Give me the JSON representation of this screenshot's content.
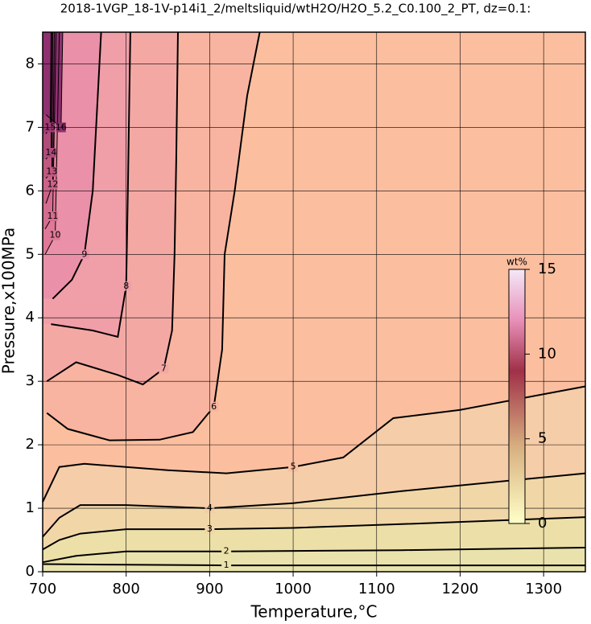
{
  "chart_data": {
    "type": "contour",
    "title": "2018-1VGP_18-1V-p14i1_2/meltsliquid/wtH2O/H2O_5.2_C0.100_2_PT, dz=0.1:",
    "xlabel": "Temperature,°C",
    "ylabel": "Pressure,x100MPa",
    "xlim": [
      700,
      1350
    ],
    "ylim": [
      0,
      8.5
    ],
    "xticks": [
      700,
      800,
      900,
      1000,
      1100,
      1200,
      1300
    ],
    "yticks": [
      0,
      1,
      2,
      3,
      4,
      5,
      6,
      7,
      8
    ],
    "grid": true,
    "colorbar": {
      "label": "wt%",
      "lim": [
        0,
        15
      ],
      "ticks": [
        0,
        5,
        10,
        15
      ]
    },
    "contours": [
      {
        "level": 1,
        "x": [
          700,
          800,
          920,
          1130,
          1350
        ],
        "y": [
          0.12,
          0.11,
          0.1,
          0.1,
          0.1
        ]
      },
      {
        "level": 2,
        "x": [
          700,
          740,
          800,
          920,
          1130,
          1350
        ],
        "y": [
          0.15,
          0.25,
          0.32,
          0.32,
          0.34,
          0.38
        ]
      },
      {
        "level": 3,
        "x": [
          700,
          720,
          745,
          800,
          900,
          1000,
          1130,
          1350
        ],
        "y": [
          0.35,
          0.5,
          0.6,
          0.67,
          0.67,
          0.69,
          0.75,
          0.86
        ]
      },
      {
        "level": 4,
        "x": [
          700,
          720,
          745,
          800,
          900,
          1000,
          1130,
          1350
        ],
        "y": [
          0.55,
          0.85,
          1.05,
          1.05,
          1.0,
          1.08,
          1.27,
          1.55
        ]
      },
      {
        "level": 5,
        "x": [
          700,
          720,
          750,
          850,
          920,
          1000,
          1060,
          1120,
          1200,
          1350
        ],
        "y": [
          1.1,
          1.65,
          1.7,
          1.6,
          1.55,
          1.65,
          1.8,
          2.42,
          2.55,
          2.92
        ]
      },
      {
        "level": 6,
        "x": [
          705,
          730,
          780,
          840,
          880,
          905,
          915,
          918,
          930,
          945,
          960
        ],
        "y": [
          2.5,
          2.25,
          2.07,
          2.08,
          2.2,
          2.6,
          3.5,
          5,
          6,
          7.5,
          8.5
        ]
      },
      {
        "level": 7,
        "x": [
          705,
          740,
          790,
          820,
          845,
          855,
          858,
          860,
          862
        ],
        "y": [
          3.0,
          3.3,
          3.1,
          2.95,
          3.2,
          3.8,
          5,
          6.5,
          8.5
        ]
      },
      {
        "level": 8,
        "x": [
          710,
          760,
          790,
          800,
          802,
          805
        ],
        "y": [
          3.9,
          3.8,
          3.7,
          4.5,
          6,
          8.5
        ]
      },
      {
        "level": 9,
        "x": [
          712,
          735,
          750,
          760,
          770
        ],
        "y": [
          4.3,
          4.6,
          5,
          6,
          8.5
        ]
      },
      {
        "level": 10,
        "x": [
          703,
          715,
          720
        ],
        "y": [
          5.0,
          5.3,
          8.5
        ]
      },
      {
        "level": 11,
        "x": [
          703,
          712,
          716
        ],
        "y": [
          5.4,
          5.6,
          8.5
        ]
      },
      {
        "level": 12,
        "x": [
          704,
          712,
          714
        ],
        "y": [
          5.8,
          6.1,
          8.5
        ]
      },
      {
        "level": 13,
        "x": [
          704,
          711,
          712
        ],
        "y": [
          6.2,
          6.3,
          8.5
        ]
      },
      {
        "level": 14,
        "x": [
          704,
          710,
          711
        ],
        "y": [
          6.5,
          6.6,
          8.5
        ]
      },
      {
        "level": 15,
        "x": [
          704,
          709,
          710
        ],
        "y": [
          6.9,
          7.0,
          8.5
        ]
      },
      {
        "level": 16,
        "x": [
          704,
          722,
          724
        ],
        "y": [
          7.2,
          7.0,
          8.5
        ]
      }
    ]
  }
}
